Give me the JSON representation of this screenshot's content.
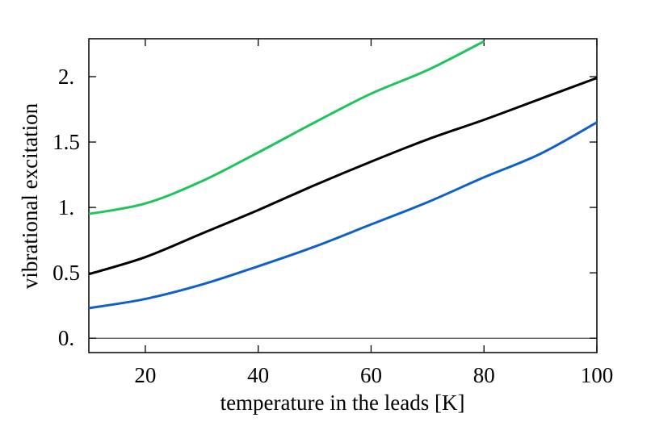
{
  "chart_data": {
    "type": "line",
    "x_label": "temperature in the leads [K]",
    "y_label": "vibrational excitation",
    "x": [
      10,
      20,
      30,
      40,
      50,
      60,
      70,
      80,
      90,
      100
    ],
    "series": [
      {
        "color": "#1fc45a",
        "values": [
          0.95,
          1.03,
          1.2,
          1.42,
          1.65,
          1.87,
          2.05,
          2.27,
          null,
          null
        ]
      },
      {
        "color": "#000000",
        "values": [
          0.49,
          0.62,
          0.8,
          0.98,
          1.17,
          1.35,
          1.52,
          1.67,
          1.83,
          1.99
        ]
      },
      {
        "color": "#1060c8",
        "values": [
          0.23,
          0.3,
          0.41,
          0.55,
          0.7,
          0.87,
          1.04,
          1.23,
          1.41,
          1.65
        ]
      }
    ],
    "xlim": [
      10,
      100
    ],
    "ylim": [
      -0.11,
      2.29
    ],
    "xticks": [
      20,
      40,
      60,
      80,
      100
    ],
    "yticks": [
      {
        "value": 0,
        "label": "0."
      },
      0.5,
      {
        "value": 1,
        "label": "1."
      },
      1.5,
      {
        "value": 2,
        "label": "2."
      }
    ]
  }
}
